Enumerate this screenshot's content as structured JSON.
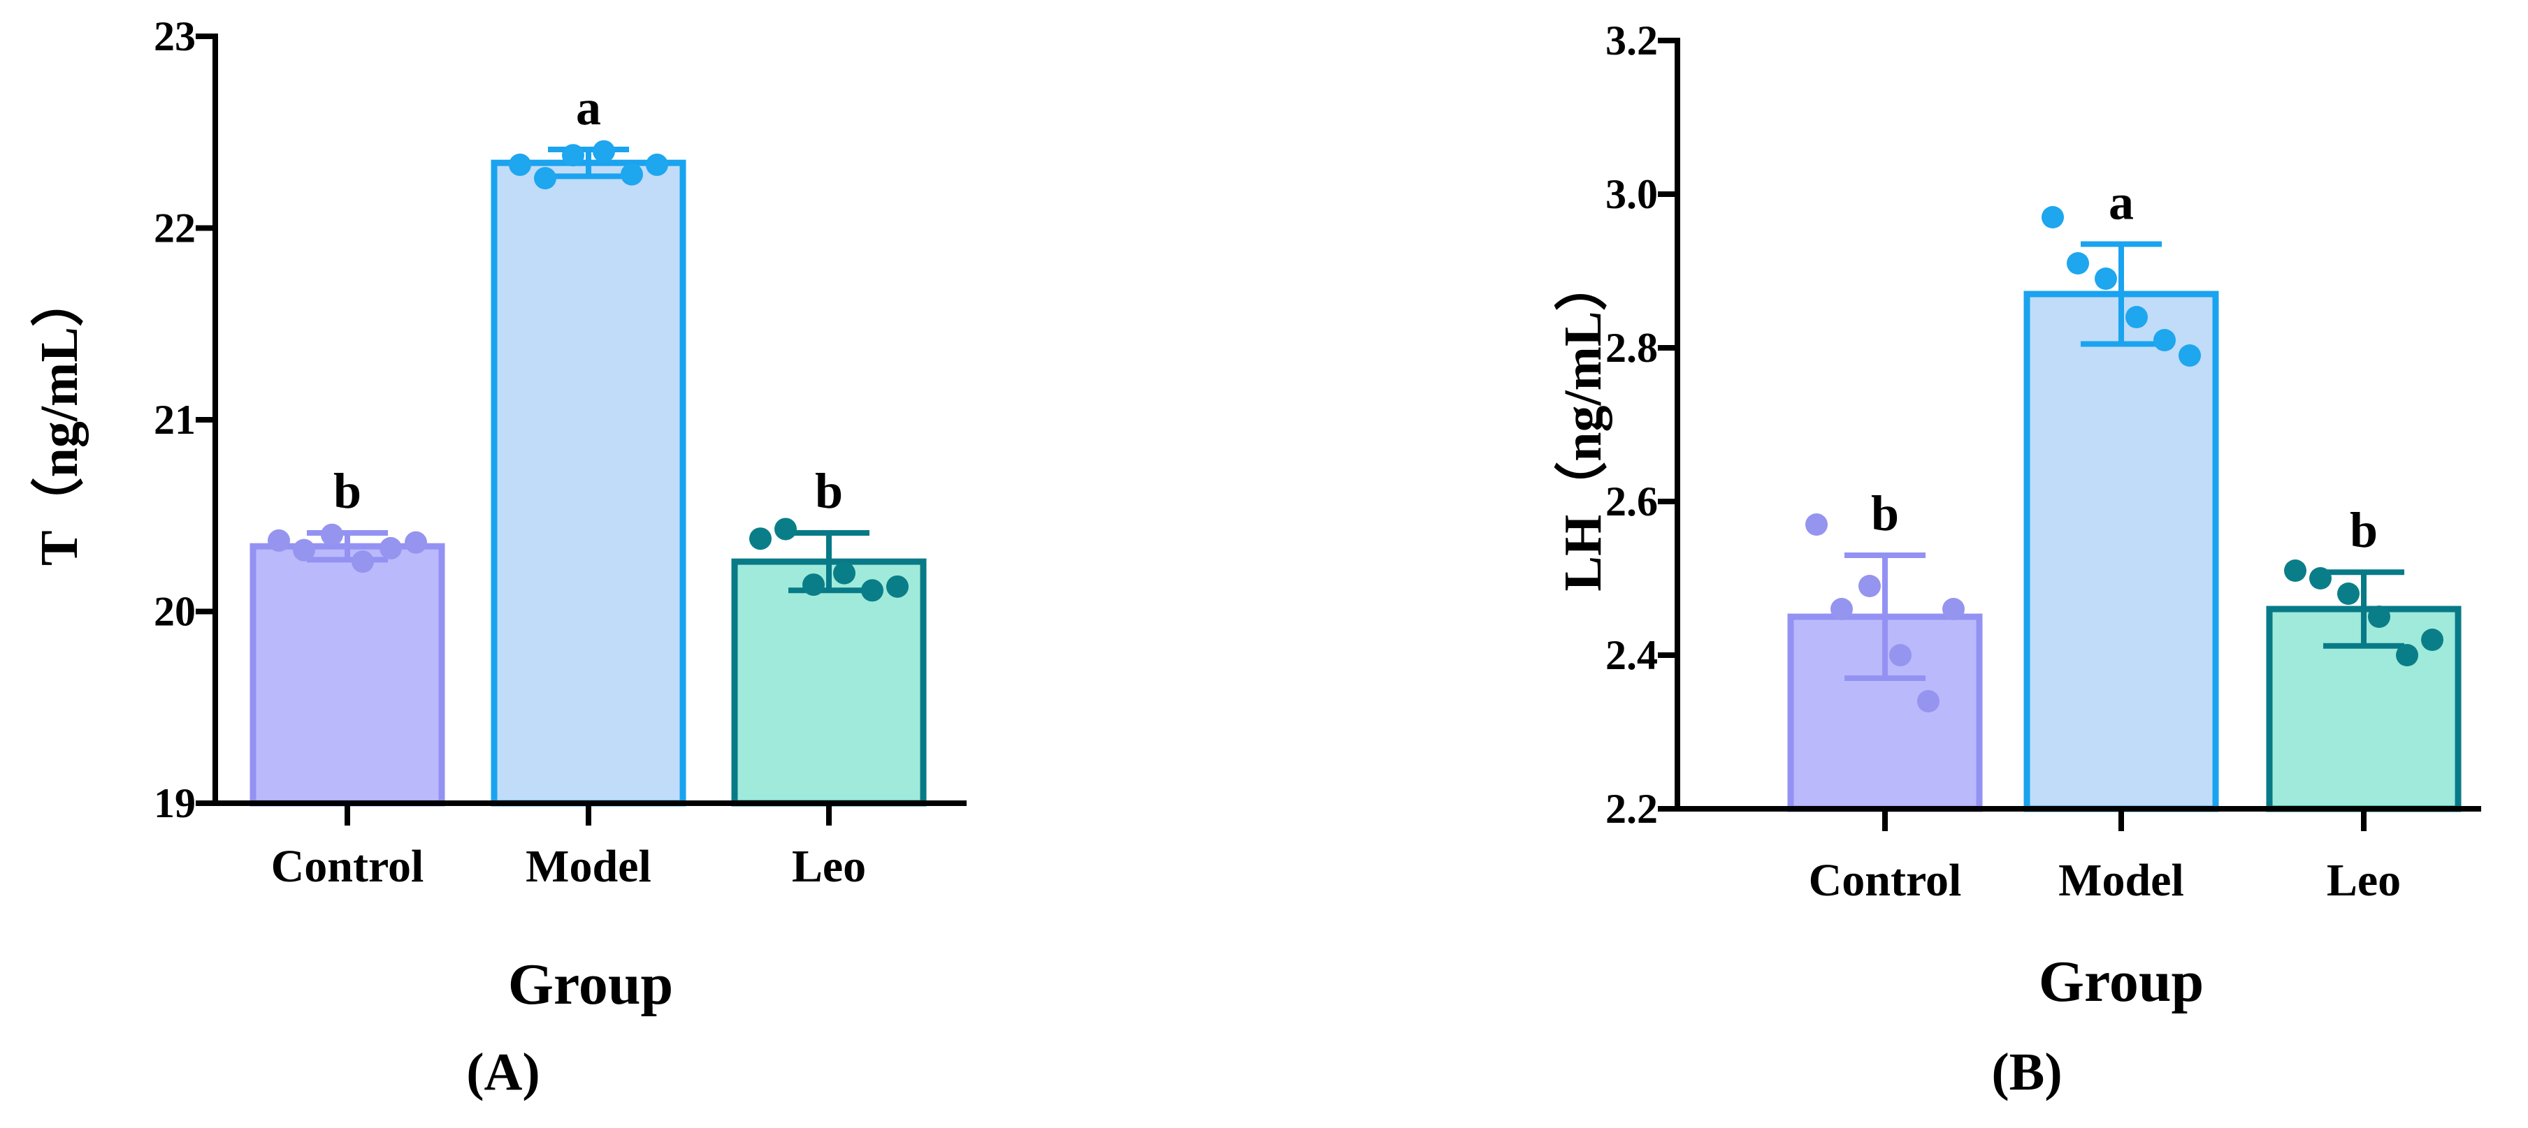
{
  "chart_data": [
    {
      "type": "bar",
      "panel_label": "(A)",
      "categories": [
        "Control",
        "Model",
        "Leo"
      ],
      "xlabel": "Group",
      "ylabel": "T（ng/mL）",
      "ylim": [
        19,
        23
      ],
      "yticks": [
        "19",
        "20",
        "21",
        "22",
        "23"
      ],
      "values": [
        20.34,
        22.34,
        20.26
      ],
      "errors": [
        0.07,
        0.07,
        0.15
      ],
      "significance": [
        "b",
        "a",
        "b"
      ],
      "points": [
        [
          20.37,
          20.32,
          20.4,
          20.26,
          20.33,
          20.36
        ],
        [
          22.33,
          22.26,
          22.38,
          22.4,
          22.28,
          22.33
        ],
        [
          20.38,
          20.43,
          20.14,
          20.2,
          20.11,
          20.13
        ]
      ],
      "colors": {
        "fills": [
          "#bab9fb",
          "#c0dcf8",
          "#a0eadb"
        ],
        "strokes": [
          "#9392f3",
          "#1aa3ef",
          "#087a87"
        ],
        "dots": [
          "#9594ef",
          "#1ea6ef",
          "#0a7e88"
        ]
      },
      "grid": false,
      "legend": "none"
    },
    {
      "type": "bar",
      "panel_label": "(B)",
      "categories": [
        "Control",
        "Model",
        "Leo"
      ],
      "xlabel": "Group",
      "ylabel": "LH（ng/mL）",
      "ylim": [
        2.2,
        3.2
      ],
      "yticks": [
        "2.2",
        "2.4",
        "2.6",
        "2.8",
        "3.0",
        "3.2"
      ],
      "values": [
        2.45,
        2.87,
        2.46
      ],
      "errors": [
        0.08,
        0.065,
        0.048
      ],
      "significance": [
        "b",
        "a",
        "b"
      ],
      "points": [
        [
          2.57,
          2.46,
          2.49,
          2.4,
          2.34,
          2.46
        ],
        [
          2.97,
          2.91,
          2.89,
          2.84,
          2.81,
          2.79
        ],
        [
          2.51,
          2.5,
          2.48,
          2.45,
          2.4,
          2.42
        ]
      ],
      "colors": {
        "fills": [
          "#bab9fb",
          "#c0dcf8",
          "#a0eadb"
        ],
        "strokes": [
          "#9392f3",
          "#1aa3ef",
          "#087a87"
        ],
        "dots": [
          "#9594ef",
          "#1ea6ef",
          "#0a7e88"
        ]
      },
      "grid": false,
      "legend": "none"
    }
  ]
}
